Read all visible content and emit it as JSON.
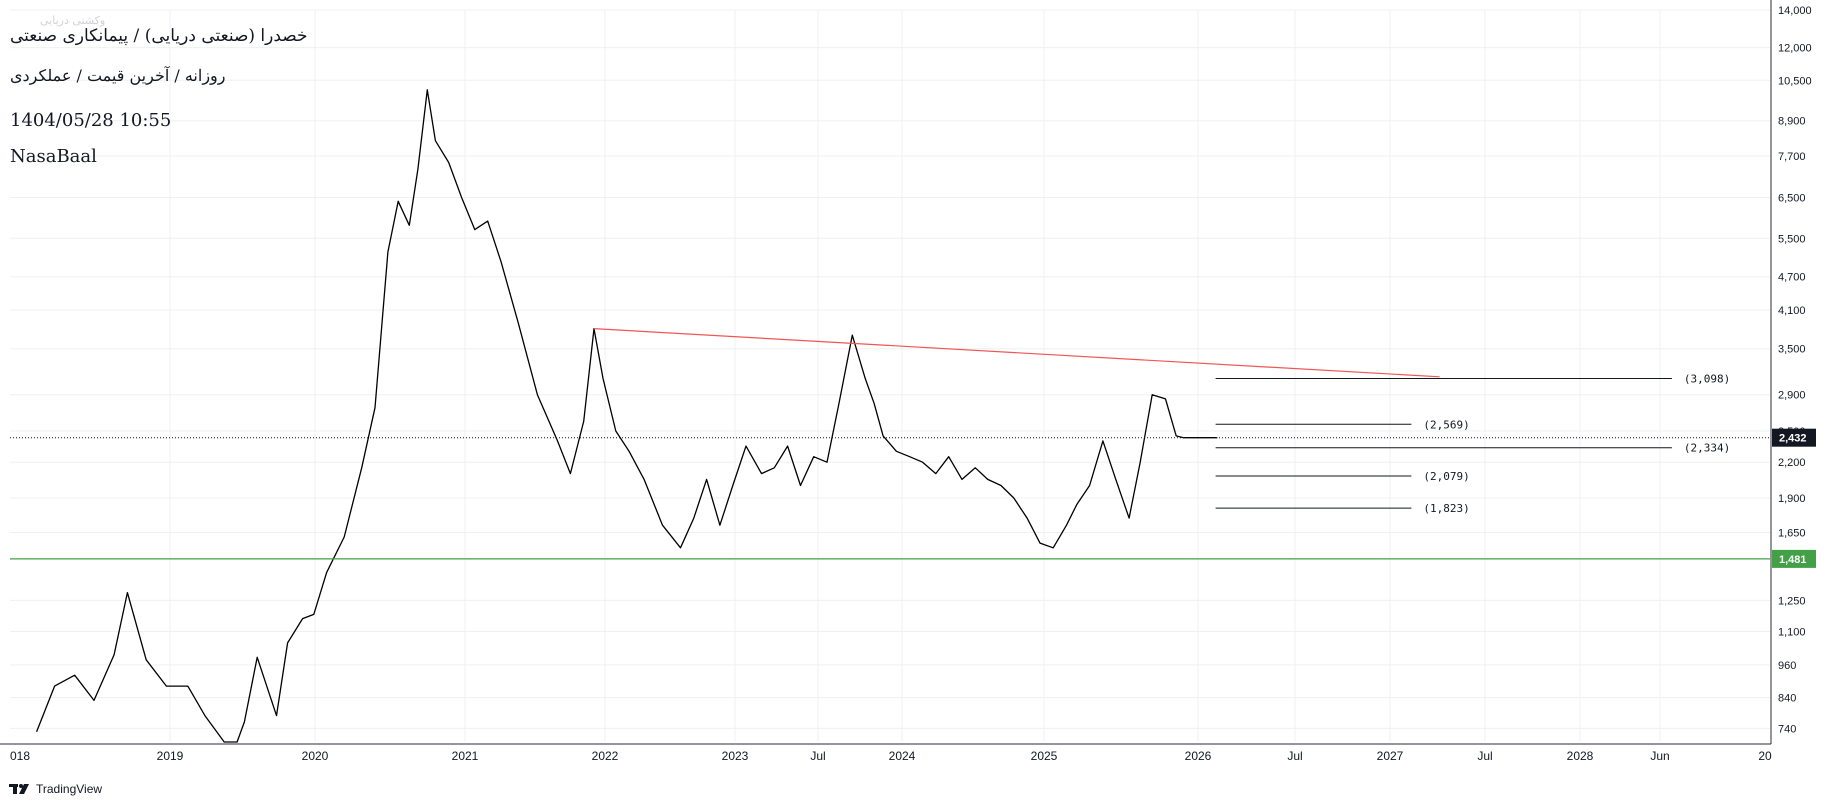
{
  "header": {
    "symbol_line": "خصدرا (صنعتی دریایی) / پیمانکاری صنعتی",
    "interval_line": "روزانه / آخرین قیمت / عملکردی",
    "datetime": "1404/05/28 10:55",
    "author": "NasaBaal",
    "watermark_small": "وکشتی دریایی"
  },
  "footer": {
    "brand": "TradingView",
    "brand_icon": "tradingview-logo-icon"
  },
  "colors": {
    "background": "#ffffff",
    "grid": "#eef0f3",
    "price": "#000000",
    "resistance_line": "#f05656",
    "support_line": "#43a047",
    "level_line": "#131722",
    "current_tag": "#131722",
    "support_tag": "#43a047",
    "axis_text": "#131722"
  },
  "chart_data": {
    "type": "line",
    "title": "",
    "xlabel": "",
    "ylabel": "",
    "scale": "log",
    "grid": true,
    "x_ticks": [
      "018",
      "2019",
      "2020",
      "2021",
      "2022",
      "2023",
      "Jul",
      "2024",
      "2025",
      "2026",
      "Jul",
      "2027",
      "Jul",
      "2028",
      "Jun",
      "20"
    ],
    "y_ticks": [
      740,
      840,
      960,
      1100,
      1250,
      1481,
      1650,
      1900,
      2200,
      2500,
      2900,
      3500,
      4100,
      4700,
      5500,
      6500,
      7700,
      8900,
      10500,
      12000,
      14000
    ],
    "ylim": [
      700,
      14000
    ],
    "xlim": [
      "2017-12-01",
      "2029-03-01"
    ],
    "series": [
      {
        "x": [
          "2018-02-01",
          "2018-03-15",
          "2018-05-01",
          "2018-06-15",
          "2018-08-01",
          "2018-09-01",
          "2018-10-15",
          "2018-12-01",
          "2019-01-20",
          "2019-03-01",
          "2019-04-15",
          "2019-05-15",
          "2019-06-01",
          "2019-07-01",
          "2019-08-15",
          "2019-09-10",
          "2019-10-15",
          "2019-11-10",
          "2019-12-10",
          "2020-01-20",
          "2020-03-01",
          "2020-04-01",
          "2020-05-01",
          "2020-05-25",
          "2020-06-20",
          "2020-07-10",
          "2020-08-01",
          "2020-08-20",
          "2020-09-20",
          "2020-10-20",
          "2020-11-20",
          "2020-12-20",
          "2021-01-20",
          "2021-03-01",
          "2021-04-15",
          "2021-06-01",
          "2021-07-01",
          "2021-08-01",
          "2021-08-25",
          "2021-09-15",
          "2021-10-15",
          "2021-11-15",
          "2021-12-20",
          "2022-02-01",
          "2022-03-15",
          "2022-04-15",
          "2022-05-15",
          "2022-06-15",
          "2022-07-15",
          "2022-08-15",
          "2022-09-20",
          "2022-10-20",
          "2022-11-20",
          "2022-12-20",
          "2023-01-20",
          "2023-02-20",
          "2023-03-20",
          "2023-04-20",
          "2023-05-20",
          "2023-06-10",
          "2023-07-01",
          "2023-08-01",
          "2023-09-01",
          "2023-10-01",
          "2023-11-01",
          "2023-12-01",
          "2024-01-01",
          "2024-02-01",
          "2024-03-01",
          "2024-04-01",
          "2024-05-01",
          "2024-06-01",
          "2024-07-01",
          "2024-08-01",
          "2024-09-01",
          "2024-09-25",
          "2024-10-25",
          "2024-11-25",
          "2024-12-25",
          "2025-01-25",
          "2025-02-20",
          "2025-03-20",
          "2025-04-20",
          "2025-05-15",
          "2025-06-01",
          "2025-06-25",
          "2025-07-15",
          "2025-08-05",
          "2025-08-19"
        ],
        "y": [
          730,
          880,
          920,
          830,
          1000,
          1290,
          980,
          880,
          880,
          780,
          700,
          700,
          760,
          990,
          780,
          1050,
          1160,
          1180,
          1400,
          1620,
          2150,
          2750,
          5200,
          6400,
          5800,
          7300,
          10100,
          8200,
          7500,
          6500,
          5700,
          5900,
          5000,
          3900,
          2900,
          2400,
          2100,
          2600,
          3800,
          3100,
          2500,
          2300,
          2050,
          1700,
          1550,
          1750,
          2050,
          1700,
          2000,
          2350,
          2100,
          2150,
          2350,
          2000,
          2250,
          2200,
          2800,
          3700,
          3100,
          2800,
          2450,
          2300,
          2250,
          2200,
          2100,
          2250,
          2050,
          2150,
          2050,
          2000,
          1900,
          1750,
          1580,
          1550,
          1700,
          1850,
          2000,
          2400,
          2050,
          1750,
          2200,
          2900,
          2850,
          2450,
          2432,
          2432,
          2432,
          2432,
          2432
        ]
      }
    ],
    "current_value": 2432,
    "support_level": 1481,
    "resistance_line": {
      "from": {
        "x": "2021-08-25",
        "y": 3800
      },
      "to": {
        "x": "2027-01-20",
        "y": 3120
      }
    },
    "levels": [
      {
        "value": 3098,
        "label": "(3,098)",
        "from": "2025-08-15",
        "to": "2028-07-15"
      },
      {
        "value": 2569,
        "label": "(2,569)",
        "from": "2025-08-15",
        "to": "2026-11-15"
      },
      {
        "value": 2334,
        "label": "(2,334)",
        "from": "2025-08-15",
        "to": "2028-07-15"
      },
      {
        "value": 2079,
        "label": "(2,079)",
        "from": "2025-08-15",
        "to": "2026-11-15"
      },
      {
        "value": 1823,
        "label": "(1,823)",
        "from": "2025-08-15",
        "to": "2026-11-15"
      }
    ],
    "price_tags": [
      {
        "label": "2,432",
        "value": 2432,
        "kind": "current"
      },
      {
        "label": "1,481",
        "value": 1481,
        "kind": "support"
      }
    ]
  }
}
